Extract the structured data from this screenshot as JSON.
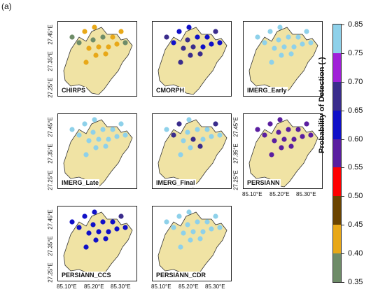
{
  "figure_label": "(a)",
  "y_ticks": [
    "27.45°E",
    "27.35°E",
    "27.25°E"
  ],
  "x_ticks": [
    "85.10°E",
    "85.20°E",
    "85.30°E"
  ],
  "colorbar": {
    "title": "Probability of Detection (-)",
    "ticks": [
      "0.85",
      "0.75",
      "0.70",
      "0.65",
      "0.60",
      "0.55",
      "0.50",
      "0.45",
      "0.40",
      "0.35"
    ],
    "colors": [
      "#8ed1ea",
      "#a020d8",
      "#3a2c8c",
      "#1010c8",
      "#5a1ea0",
      "#ff0000",
      "#6b4400",
      "#e8a818",
      "#6e8c68"
    ]
  },
  "basin_fill": "#f0e3a4",
  "panels": [
    {
      "name": "CHIRPS",
      "stations": [
        [
          4,
          0.35
        ],
        [
          6,
          0.35
        ],
        [
          9,
          0.4
        ],
        [
          10,
          0.4
        ],
        [
          12,
          0.4
        ],
        [
          14,
          0.4
        ],
        [
          1,
          0.35
        ],
        [
          2,
          0.4
        ],
        [
          3,
          0.4
        ],
        [
          5,
          0.35
        ],
        [
          7,
          0.4
        ],
        [
          8,
          0.4
        ],
        [
          11,
          0.4
        ],
        [
          13,
          0.35
        ],
        [
          15,
          0.4
        ],
        [
          16,
          0.4
        ]
      ]
    },
    {
      "name": "CMORPH",
      "stations": [
        [
          4,
          0.6
        ],
        [
          6,
          0.6
        ],
        [
          9,
          0.65
        ],
        [
          10,
          0.65
        ],
        [
          12,
          0.6
        ],
        [
          14,
          0.65
        ],
        [
          1,
          0.65
        ],
        [
          2,
          0.6
        ],
        [
          3,
          0.6
        ],
        [
          5,
          0.65
        ],
        [
          7,
          0.6
        ],
        [
          8,
          0.65
        ],
        [
          11,
          0.6
        ],
        [
          13,
          0.6
        ],
        [
          15,
          0.65
        ],
        [
          16,
          0.65
        ]
      ]
    },
    {
      "name": "IMERG_Early",
      "stations": [
        [
          4,
          0.75
        ],
        [
          6,
          0.75
        ],
        [
          9,
          0.75
        ],
        [
          10,
          0.75
        ],
        [
          12,
          0.75
        ],
        [
          14,
          0.75
        ],
        [
          1,
          0.75
        ],
        [
          2,
          0.75
        ],
        [
          3,
          0.75
        ],
        [
          5,
          0.75
        ],
        [
          7,
          0.75
        ],
        [
          8,
          0.75
        ],
        [
          11,
          0.75
        ],
        [
          13,
          0.75
        ],
        [
          15,
          0.75
        ],
        [
          16,
          0.75
        ]
      ]
    },
    {
      "name": "IMERG_Late",
      "stations": [
        [
          4,
          0.75
        ],
        [
          6,
          0.75
        ],
        [
          9,
          0.75
        ],
        [
          10,
          0.75
        ],
        [
          12,
          0.75
        ],
        [
          14,
          0.75
        ],
        [
          1,
          0.75
        ],
        [
          2,
          0.75
        ],
        [
          3,
          0.75
        ],
        [
          5,
          0.75
        ],
        [
          7,
          0.75
        ],
        [
          8,
          0.75
        ],
        [
          11,
          0.75
        ],
        [
          13,
          0.75
        ],
        [
          15,
          0.75
        ],
        [
          16,
          0.75
        ]
      ]
    },
    {
      "name": "IMERG_Final",
      "stations": [
        [
          4,
          0.65
        ],
        [
          6,
          0.75
        ],
        [
          9,
          0.75
        ],
        [
          10,
          0.65
        ],
        [
          12,
          0.75
        ],
        [
          14,
          0.75
        ],
        [
          1,
          0.75
        ],
        [
          2,
          0.65
        ],
        [
          3,
          0.75
        ],
        [
          5,
          0.75
        ],
        [
          7,
          0.75
        ],
        [
          8,
          0.65
        ],
        [
          11,
          0.75
        ],
        [
          13,
          0.75
        ],
        [
          15,
          0.65
        ],
        [
          16,
          0.75
        ]
      ]
    },
    {
      "name": "PERSIANN",
      "stations": [
        [
          4,
          0.55
        ],
        [
          6,
          0.55
        ],
        [
          9,
          0.55
        ],
        [
          10,
          0.55
        ],
        [
          12,
          0.55
        ],
        [
          14,
          0.55
        ],
        [
          1,
          0.55
        ],
        [
          2,
          0.55
        ],
        [
          3,
          0.55
        ],
        [
          5,
          0.55
        ],
        [
          7,
          0.55
        ],
        [
          8,
          0.55
        ],
        [
          11,
          0.55
        ],
        [
          13,
          0.55
        ],
        [
          15,
          0.55
        ],
        [
          16,
          0.55
        ]
      ]
    },
    {
      "name": "PERSIANN_CCS",
      "stations": [
        [
          4,
          0.6
        ],
        [
          6,
          0.6
        ],
        [
          9,
          0.6
        ],
        [
          10,
          0.6
        ],
        [
          12,
          0.6
        ],
        [
          14,
          0.6
        ],
        [
          1,
          0.6
        ],
        [
          2,
          0.6
        ],
        [
          3,
          0.6
        ],
        [
          5,
          0.6
        ],
        [
          7,
          0.6
        ],
        [
          8,
          0.65
        ],
        [
          11,
          0.6
        ],
        [
          13,
          0.6
        ],
        [
          15,
          0.6
        ],
        [
          16,
          0.6
        ]
      ]
    },
    {
      "name": "PERSIANN_CDR",
      "stations": [
        [
          4,
          0.75
        ],
        [
          6,
          0.75
        ],
        [
          9,
          0.85
        ],
        [
          10,
          0.85
        ],
        [
          12,
          0.75
        ],
        [
          14,
          0.85
        ],
        [
          1,
          0.75
        ],
        [
          2,
          0.75
        ],
        [
          3,
          0.75
        ],
        [
          5,
          0.75
        ],
        [
          7,
          0.75
        ],
        [
          8,
          0.75
        ],
        [
          11,
          0.75
        ],
        [
          13,
          0.85
        ],
        [
          15,
          0.75
        ],
        [
          16,
          0.85
        ]
      ]
    }
  ]
}
